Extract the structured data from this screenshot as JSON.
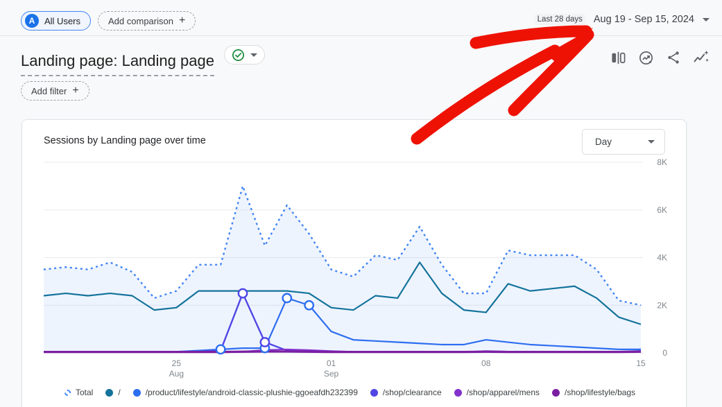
{
  "header": {
    "segment_chip": {
      "avatar_letter": "A",
      "label": "All Users"
    },
    "add_comparison_label": "Add comparison",
    "add_filter_label": "Add filter",
    "date_picker": {
      "preset": "Last 28 days",
      "range": "Aug 19 - Sep 15, 2024"
    },
    "title": "Landing page: Landing page",
    "toolbar_icons": [
      "edit-comparisons-icon",
      "insights-circle-icon",
      "share-icon",
      "insights-spark-icon"
    ]
  },
  "icons": {
    "plus": "+"
  },
  "card": {
    "title": "Sessions by Landing page over time",
    "granularity_selected": "Day"
  },
  "annotation": {
    "type": "hand-drawn-arrow",
    "color": "#ee1205",
    "points_to": "date-range-picker"
  },
  "chart_data": {
    "type": "line",
    "title": "Sessions by Landing page over time",
    "ylabel": "Sessions",
    "ylim": [
      0,
      8000
    ],
    "grid": true,
    "legend_position": "bottom",
    "x": [
      "Aug 19",
      "Aug 20",
      "Aug 21",
      "Aug 22",
      "Aug 23",
      "Aug 24",
      "Aug 25",
      "Aug 26",
      "Aug 27",
      "Aug 28",
      "Aug 29",
      "Aug 30",
      "Aug 31",
      "Sep 1",
      "Sep 2",
      "Sep 3",
      "Sep 4",
      "Sep 5",
      "Sep 6",
      "Sep 7",
      "Sep 8",
      "Sep 9",
      "Sep 10",
      "Sep 11",
      "Sep 12",
      "Sep 13",
      "Sep 14",
      "Sep 15"
    ],
    "x_ticks": [
      {
        "index": 6,
        "lines": [
          "25",
          "Aug"
        ]
      },
      {
        "index": 13,
        "lines": [
          "01",
          "Sep"
        ]
      },
      {
        "index": 20,
        "lines": [
          "08"
        ]
      },
      {
        "index": 27,
        "lines": [
          "15"
        ]
      }
    ],
    "y_axis": [
      {
        "label": "8K",
        "value": 8000
      },
      {
        "label": "6K",
        "value": 6000
      },
      {
        "label": "4K",
        "value": 4000
      },
      {
        "label": "2K",
        "value": 2000
      },
      {
        "label": "0",
        "value": 0
      }
    ],
    "series": [
      {
        "name": "Total",
        "color": "#4285f4",
        "style": "dotted",
        "fill": true,
        "width": 2.4,
        "values": [
          3500,
          3600,
          3500,
          3800,
          3400,
          2300,
          2600,
          3700,
          3700,
          7000,
          4500,
          6200,
          5000,
          3500,
          3200,
          4100,
          3900,
          5300,
          3700,
          2500,
          2500,
          4300,
          4100,
          4100,
          4100,
          3500,
          2200,
          2000
        ]
      },
      {
        "name": "/",
        "color": "#14739b",
        "style": "solid",
        "width": 2.2,
        "values": [
          2400,
          2500,
          2400,
          2500,
          2400,
          1800,
          1900,
          2600,
          2600,
          2600,
          2600,
          2600,
          2500,
          1900,
          1800,
          2400,
          2300,
          3800,
          2500,
          1800,
          1700,
          2900,
          2600,
          2700,
          2800,
          2300,
          1500,
          1200
        ]
      },
      {
        "name": "/product/lifestyle/android-classic-plushie-ggoeafdh232399",
        "color": "#2d6ef0",
        "style": "solid",
        "width": 2.2,
        "values": [
          50,
          50,
          50,
          50,
          50,
          50,
          50,
          100,
          150,
          200,
          200,
          2300,
          2000,
          900,
          550,
          500,
          450,
          400,
          350,
          350,
          550,
          450,
          350,
          300,
          250,
          200,
          150,
          150
        ]
      },
      {
        "name": "/shop/clearance",
        "color": "#4f46e5",
        "style": "solid",
        "width": 2.4,
        "values": [
          50,
          50,
          50,
          50,
          50,
          50,
          50,
          50,
          100,
          2500,
          450,
          100,
          80,
          60,
          50,
          50,
          50,
          50,
          50,
          50,
          50,
          50,
          50,
          50,
          50,
          50,
          50,
          80
        ]
      },
      {
        "name": "/shop/apparel/mens",
        "color": "#8430ce",
        "style": "solid",
        "width": 2,
        "values": [
          30,
          30,
          30,
          30,
          30,
          30,
          30,
          30,
          40,
          60,
          120,
          150,
          120,
          80,
          50,
          40,
          40,
          40,
          50,
          40,
          80,
          60,
          50,
          40,
          40,
          40,
          30,
          60
        ]
      },
      {
        "name": "/shop/lifestyle/bags",
        "color": "#7b1fa2",
        "style": "solid",
        "width": 3.2,
        "values": [
          40,
          40,
          40,
          40,
          40,
          40,
          40,
          40,
          40,
          50,
          60,
          60,
          50,
          40,
          40,
          40,
          40,
          40,
          40,
          40,
          50,
          40,
          40,
          40,
          40,
          40,
          40,
          50
        ]
      }
    ],
    "markers": [
      {
        "series": 2,
        "index": 8
      },
      {
        "series": 2,
        "index": 10
      },
      {
        "series": 2,
        "index": 11
      },
      {
        "series": 2,
        "index": 12
      },
      {
        "series": 3,
        "index": 9
      },
      {
        "series": 3,
        "index": 10
      }
    ]
  }
}
